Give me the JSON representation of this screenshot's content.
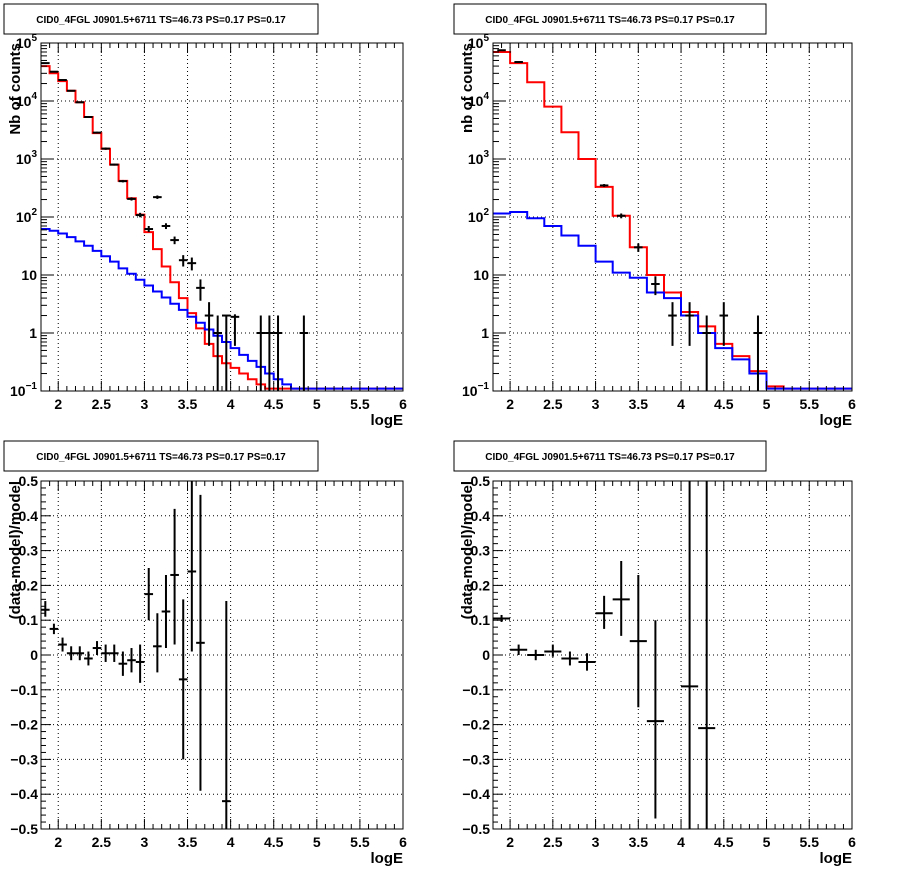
{
  "chart_data": [
    {
      "type": "line",
      "title": "CID0_4FGL J0901.5+6711 TS=46.73 PS=0.17 PS=0.17",
      "xlabel": "logE",
      "ylabel": "Nb of counts",
      "log_y": true,
      "xlim": [
        1.8,
        6.0
      ],
      "ylim": [
        0.1,
        100000
      ],
      "x_ticks": [
        "2",
        "2.5",
        "3",
        "3.5",
        "4",
        "4.5",
        "5",
        "5.5",
        "6"
      ],
      "y_ticks": [
        {
          "base": "10",
          "exp": "−1"
        },
        {
          "base": "1",
          "exp": ""
        },
        {
          "base": "10",
          "exp": ""
        },
        {
          "base": "10",
          "exp": "2"
        },
        {
          "base": "10",
          "exp": "3"
        },
        {
          "base": "10",
          "exp": "4"
        },
        {
          "base": "10",
          "exp": "5"
        }
      ],
      "grid": true,
      "bin_edges": [
        1.8,
        1.9,
        2.0,
        2.1,
        2.2,
        2.3,
        2.4,
        2.5,
        2.6,
        2.7,
        2.8,
        2.9,
        3.0,
        3.1,
        3.2,
        3.3,
        3.4,
        3.5,
        3.6,
        3.7,
        3.8,
        3.9,
        4.0,
        4.1,
        4.2,
        4.3,
        4.4,
        4.5,
        4.6,
        4.7,
        4.8,
        4.9,
        5.0,
        5.1,
        5.2,
        5.3,
        5.4,
        5.5,
        5.6,
        5.7,
        5.8,
        5.9,
        6.0
      ],
      "series": [
        {
          "color": "#ff0000",
          "kind": "step",
          "values": [
            40000,
            30000,
            22000,
            15000,
            9500,
            5300,
            2800,
            1500,
            800,
            420,
            210,
            110,
            55,
            28,
            14,
            7.5,
            4.0,
            2.2,
            1.2,
            0.65,
            0.4,
            0.3,
            0.25,
            0.2,
            0.16,
            0.13,
            0.11,
            0.11,
            0.11,
            0.11,
            0.11,
            0.11,
            0.11,
            0.11,
            0.11,
            0.11,
            0.11,
            0.11,
            0.11,
            0.11,
            0.11,
            0.11
          ]
        },
        {
          "color": "#0000ff",
          "kind": "step",
          "values": [
            62,
            58,
            52,
            45,
            38,
            32,
            26,
            21,
            17,
            13,
            10.5,
            8.3,
            6.6,
            5.2,
            4.1,
            3.2,
            2.5,
            1.9,
            1.5,
            1.15,
            0.9,
            0.7,
            0.55,
            0.42,
            0.33,
            0.26,
            0.2,
            0.16,
            0.13,
            0.11,
            0.11,
            0.11,
            0.11,
            0.11,
            0.11,
            0.11,
            0.11,
            0.11,
            0.11,
            0.11,
            0.11,
            0.11
          ]
        },
        {
          "color": "#000000",
          "kind": "errorbars",
          "points": [
            {
              "x": 1.85,
              "y": 45000,
              "lo": 44000,
              "hi": 46000
            },
            {
              "x": 1.95,
              "y": 32000,
              "lo": 31500,
              "hi": 32500
            },
            {
              "x": 2.05,
              "y": 23000,
              "lo": 22600,
              "hi": 23400
            },
            {
              "x": 2.15,
              "y": 15000,
              "lo": 14700,
              "hi": 15300
            },
            {
              "x": 2.25,
              "y": 9500,
              "lo": 9300,
              "hi": 9700
            },
            {
              "x": 2.35,
              "y": 5300,
              "lo": 5150,
              "hi": 5450
            },
            {
              "x": 2.45,
              "y": 2850,
              "lo": 2750,
              "hi": 2950
            },
            {
              "x": 2.55,
              "y": 1510,
              "lo": 1440,
              "hi": 1580
            },
            {
              "x": 2.65,
              "y": 800,
              "lo": 770,
              "hi": 830
            },
            {
              "x": 2.75,
              "y": 415,
              "lo": 395,
              "hi": 435
            },
            {
              "x": 2.85,
              "y": 205,
              "lo": 192,
              "hi": 218
            },
            {
              "x": 2.95,
              "y": 108,
              "lo": 99,
              "hi": 118
            },
            {
              "x": 3.05,
              "y": 62,
              "lo": 55,
              "hi": 70
            },
            {
              "x": 3.15,
              "y": 220,
              "lo": 205,
              "hi": 235
            },
            {
              "x": 3.25,
              "y": 70,
              "lo": 62,
              "hi": 78
            },
            {
              "x": 3.35,
              "y": 40,
              "lo": 34,
              "hi": 46
            },
            {
              "x": 3.45,
              "y": 18,
              "lo": 14,
              "hi": 22
            },
            {
              "x": 3.55,
              "y": 16,
              "lo": 12,
              "hi": 20
            },
            {
              "x": 3.65,
              "y": 6,
              "lo": 3.6,
              "hi": 8.4
            },
            {
              "x": 3.75,
              "y": 2,
              "lo": 0.6,
              "hi": 3.4
            },
            {
              "x": 3.85,
              "y": 1,
              "lo": 0.1,
              "hi": 2.0
            },
            {
              "x": 3.95,
              "y": 2,
              "lo": 0.1,
              "hi": 2.0
            },
            {
              "x": 4.05,
              "y": 1.9,
              "lo": 0.6,
              "hi": 2.1
            },
            {
              "x": 4.35,
              "y": 1,
              "lo": 0.1,
              "hi": 2.0
            },
            {
              "x": 4.45,
              "y": 1,
              "lo": 0.1,
              "hi": 2.0
            },
            {
              "x": 4.55,
              "y": 1,
              "lo": 0.1,
              "hi": 2.0
            },
            {
              "x": 4.85,
              "y": 1,
              "lo": 0.1,
              "hi": 2.0
            }
          ]
        }
      ]
    },
    {
      "type": "line",
      "title": "CID0_4FGL J0901.5+6711 TS=46.73 PS=0.17 PS=0.17",
      "xlabel": "logE",
      "ylabel": "nb of counts",
      "log_y": true,
      "xlim": [
        1.8,
        6.0
      ],
      "ylim": [
        0.1,
        100000
      ],
      "x_ticks": [
        "2",
        "2.5",
        "3",
        "3.5",
        "4",
        "4.5",
        "5",
        "5.5",
        "6"
      ],
      "y_ticks": [
        {
          "base": "10",
          "exp": "−1"
        },
        {
          "base": "1",
          "exp": ""
        },
        {
          "base": "10",
          "exp": ""
        },
        {
          "base": "10",
          "exp": "2"
        },
        {
          "base": "10",
          "exp": "3"
        },
        {
          "base": "10",
          "exp": "4"
        },
        {
          "base": "10",
          "exp": "5"
        }
      ],
      "grid": true,
      "bin_edges": [
        1.8,
        2.0,
        2.2,
        2.4,
        2.6,
        2.8,
        3.0,
        3.2,
        3.4,
        3.6,
        3.8,
        4.0,
        4.2,
        4.4,
        4.6,
        4.8,
        5.0,
        5.2,
        5.4,
        5.6,
        5.8,
        6.0
      ],
      "series": [
        {
          "color": "#ff0000",
          "kind": "step",
          "values": [
            70000,
            45000,
            21000,
            8000,
            2900,
            1000,
            330,
            105,
            30,
            10,
            5,
            2.3,
            1.3,
            0.65,
            0.4,
            0.22,
            0.12,
            0.11,
            0.11,
            0.11,
            0.11
          ]
        },
        {
          "color": "#0000ff",
          "kind": "step",
          "values": [
            115,
            122,
            95,
            70,
            48,
            32,
            17,
            11,
            9,
            5,
            4,
            2,
            1,
            0.55,
            0.35,
            0.2,
            0.11,
            0.11,
            0.11,
            0.11,
            0.11
          ]
        },
        {
          "color": "#000000",
          "kind": "errorbars",
          "points": [
            {
              "x": 1.9,
              "y": 75000,
              "lo": 73000,
              "hi": 77000
            },
            {
              "x": 2.1,
              "y": 47000,
              "lo": 46000,
              "hi": 48000
            },
            {
              "x": 3.1,
              "y": 350,
              "lo": 330,
              "hi": 370
            },
            {
              "x": 3.3,
              "y": 105,
              "lo": 95,
              "hi": 115
            },
            {
              "x": 3.5,
              "y": 30,
              "lo": 25,
              "hi": 35
            },
            {
              "x": 3.7,
              "y": 7,
              "lo": 4.5,
              "hi": 9.5
            },
            {
              "x": 3.9,
              "y": 2,
              "lo": 0.6,
              "hi": 3.4
            },
            {
              "x": 4.1,
              "y": 2,
              "lo": 0.6,
              "hi": 3.4
            },
            {
              "x": 4.3,
              "y": 1,
              "lo": 0.1,
              "hi": 2.0
            },
            {
              "x": 4.5,
              "y": 2,
              "lo": 0.6,
              "hi": 3.4
            },
            {
              "x": 4.9,
              "y": 1,
              "lo": 0.1,
              "hi": 2.0
            }
          ]
        }
      ]
    },
    {
      "type": "scatter",
      "title": "CID0_4FGL J0901.5+6711 TS=46.73 PS=0.17 PS=0.17",
      "xlabel": "logE",
      "ylabel": "(data-model)/model",
      "log_y": false,
      "xlim": [
        1.8,
        6.0
      ],
      "ylim": [
        -0.5,
        0.5
      ],
      "x_ticks": [
        "2",
        "2.5",
        "3",
        "3.5",
        "4",
        "4.5",
        "5",
        "5.5",
        "6"
      ],
      "y_ticks": [
        "−0.5",
        "−0.4",
        "−0.3",
        "−0.2",
        "−0.1",
        "0",
        "0.1",
        "0.2",
        "0.3",
        "0.4",
        "0.5"
      ],
      "grid": true,
      "series": [
        {
          "color": "#000000",
          "kind": "errorbars",
          "halfwidth": 0.05,
          "points": [
            {
              "x": 1.85,
              "y": 0.13,
              "lo": 0.11,
              "hi": 0.155
            },
            {
              "x": 1.95,
              "y": 0.075,
              "lo": 0.06,
              "hi": 0.09
            },
            {
              "x": 2.05,
              "y": 0.03,
              "lo": 0.01,
              "hi": 0.05
            },
            {
              "x": 2.15,
              "y": 0.005,
              "lo": -0.015,
              "hi": 0.025
            },
            {
              "x": 2.25,
              "y": 0.005,
              "lo": -0.015,
              "hi": 0.025
            },
            {
              "x": 2.35,
              "y": -0.01,
              "lo": -0.03,
              "hi": 0.01
            },
            {
              "x": 2.45,
              "y": 0.02,
              "lo": 0.0,
              "hi": 0.04
            },
            {
              "x": 2.55,
              "y": 0.005,
              "lo": -0.02,
              "hi": 0.03
            },
            {
              "x": 2.65,
              "y": 0.005,
              "lo": -0.02,
              "hi": 0.03
            },
            {
              "x": 2.75,
              "y": -0.025,
              "lo": -0.06,
              "hi": 0.01
            },
            {
              "x": 2.85,
              "y": -0.015,
              "lo": -0.05,
              "hi": 0.02
            },
            {
              "x": 2.95,
              "y": -0.02,
              "lo": -0.08,
              "hi": 0.03
            },
            {
              "x": 3.05,
              "y": 0.175,
              "lo": 0.1,
              "hi": 0.25
            },
            {
              "x": 3.15,
              "y": 0.025,
              "lo": -0.05,
              "hi": 0.12
            },
            {
              "x": 3.25,
              "y": 0.125,
              "lo": 0.02,
              "hi": 0.23
            },
            {
              "x": 3.35,
              "y": 0.23,
              "lo": 0.03,
              "hi": 0.42
            },
            {
              "x": 3.45,
              "y": -0.07,
              "lo": -0.3,
              "hi": 0.16
            },
            {
              "x": 3.55,
              "y": 0.24,
              "lo": 0.01,
              "hi": 0.5
            },
            {
              "x": 3.65,
              "y": 0.035,
              "lo": -0.39,
              "hi": 0.46
            },
            {
              "x": 3.95,
              "y": -0.42,
              "lo": -0.5,
              "hi": 0.155
            }
          ]
        }
      ]
    },
    {
      "type": "scatter",
      "title": "CID0_4FGL J0901.5+6711 TS=46.73 PS=0.17 PS=0.17",
      "xlabel": "logE",
      "ylabel": "(data-model)/model",
      "log_y": false,
      "xlim": [
        1.8,
        6.0
      ],
      "ylim": [
        -0.5,
        0.5
      ],
      "x_ticks": [
        "2",
        "2.5",
        "3",
        "3.5",
        "4",
        "4.5",
        "5",
        "5.5",
        "6"
      ],
      "y_ticks": [
        "−0.5",
        "−0.4",
        "−0.3",
        "−0.2",
        "−0.1",
        "0",
        "0.1",
        "0.2",
        "0.3",
        "0.4",
        "0.5"
      ],
      "grid": true,
      "series": [
        {
          "color": "#000000",
          "kind": "errorbars",
          "halfwidth": 0.1,
          "points": [
            {
              "x": 1.9,
              "y": 0.105,
              "lo": 0.095,
              "hi": 0.115
            },
            {
              "x": 2.1,
              "y": 0.015,
              "lo": 0.0,
              "hi": 0.03
            },
            {
              "x": 2.3,
              "y": 0.0,
              "lo": -0.015,
              "hi": 0.015
            },
            {
              "x": 2.5,
              "y": 0.01,
              "lo": -0.005,
              "hi": 0.03
            },
            {
              "x": 2.7,
              "y": -0.01,
              "lo": -0.03,
              "hi": 0.01
            },
            {
              "x": 2.9,
              "y": -0.02,
              "lo": -0.045,
              "hi": 0.005
            },
            {
              "x": 3.1,
              "y": 0.12,
              "lo": 0.075,
              "hi": 0.17
            },
            {
              "x": 3.3,
              "y": 0.16,
              "lo": 0.055,
              "hi": 0.27
            },
            {
              "x": 3.5,
              "y": 0.04,
              "lo": -0.15,
              "hi": 0.23
            },
            {
              "x": 3.7,
              "y": -0.19,
              "lo": -0.47,
              "hi": 0.1
            },
            {
              "x": 4.1,
              "y": -0.09,
              "lo": -0.5,
              "hi": 0.5
            },
            {
              "x": 4.3,
              "y": -0.21,
              "lo": -0.5,
              "hi": 0.5
            }
          ]
        }
      ]
    }
  ]
}
